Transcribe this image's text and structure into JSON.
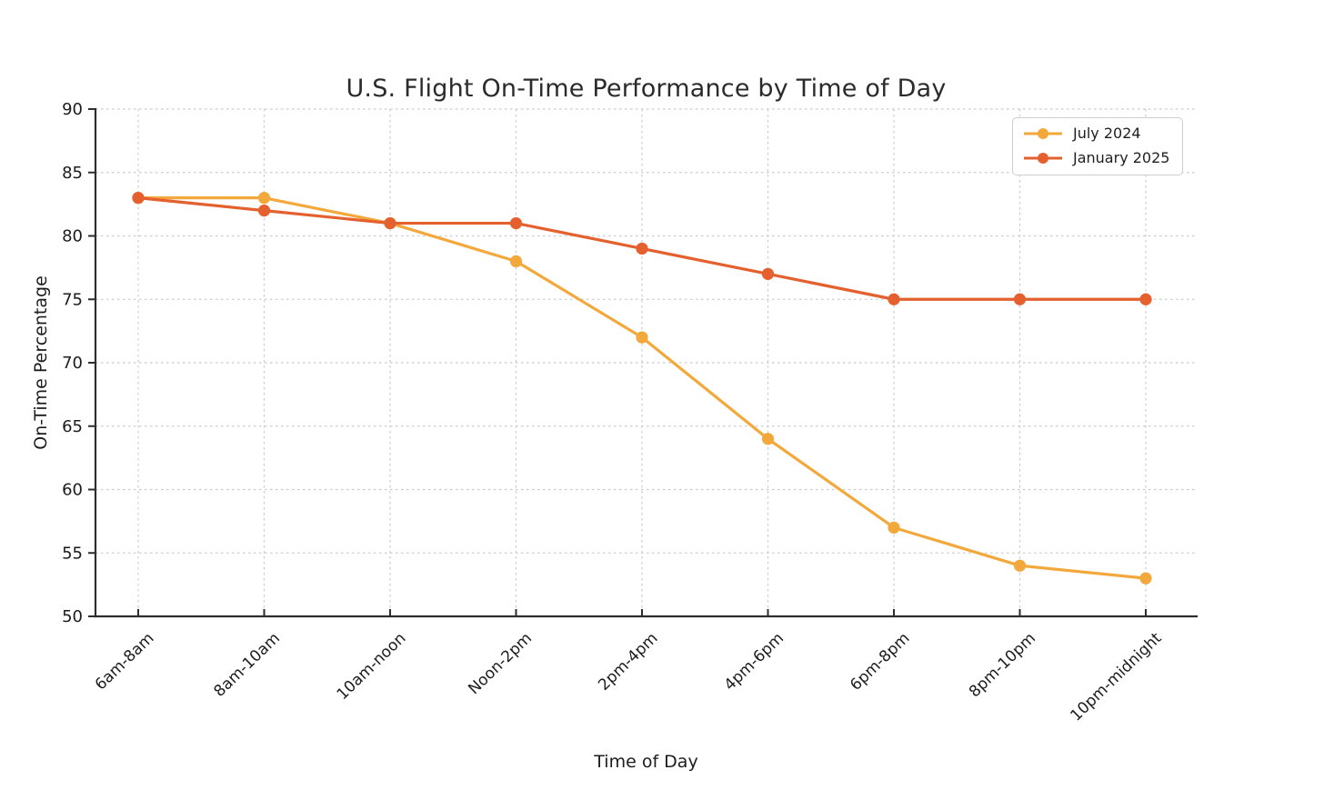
{
  "chart_data": {
    "type": "line",
    "title": "U.S. Flight On-Time Performance by Time of Day",
    "xlabel": "Time of Day",
    "ylabel": "On-Time Percentage",
    "categories": [
      "6am-8am",
      "8am-10am",
      "10am-noon",
      "Noon-2pm",
      "2pm-4pm",
      "4pm-6pm",
      "6pm-8pm",
      "8pm-10pm",
      "10pm-midnight"
    ],
    "series": [
      {
        "name": "July 2024",
        "color": "#F3A83B",
        "marker": "circle",
        "values": [
          83,
          83,
          81,
          78,
          72,
          64,
          57,
          54,
          53
        ]
      },
      {
        "name": "January 2025",
        "color": "#E4602E",
        "marker": "circle",
        "values": [
          83,
          82,
          81,
          81,
          79,
          77,
          75,
          75,
          75
        ]
      }
    ],
    "ylim": [
      50,
      90
    ],
    "ytick_step": 5,
    "grid": true,
    "grid_style": "dashed",
    "legend_position": "upper right",
    "colors": {
      "grid": "#cbcbcb",
      "axis": "#2e2e2e",
      "tick_label": "#1c1c1c",
      "background": "#ffffff"
    }
  }
}
